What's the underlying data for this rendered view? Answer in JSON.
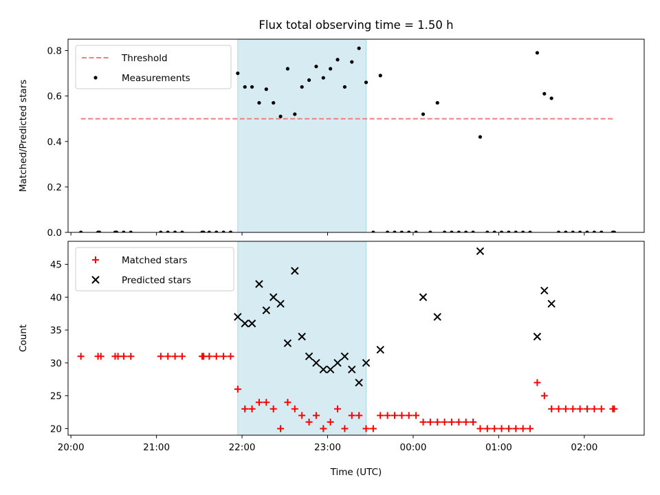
{
  "chart_data": {
    "type": "scatter",
    "title": "Flux total observing time = 1.50 h",
    "xlabel": "Time (UTC)",
    "x_unit": "time of day (UTC)",
    "xlim": [
      "19:58",
      "02:42"
    ],
    "x_ticks": [
      "20:00",
      "21:00",
      "22:00",
      "23:00",
      "00:00",
      "01:00",
      "02:00"
    ],
    "highlight_span": {
      "start": "21:57",
      "end": "23:27",
      "color": "#add8e6"
    },
    "panels": [
      {
        "ylabel": "Matched/Predicted stars",
        "ylim": [
          0,
          0.85
        ],
        "y_ticks": [
          0.0,
          0.2,
          0.4,
          0.6,
          0.8
        ],
        "y_tick_labels": [
          "0.0",
          "0.2",
          "0.4",
          "0.6",
          "0.8"
        ],
        "legend": {
          "position": "upper left",
          "entries": [
            "Threshold",
            "Measurements"
          ]
        },
        "lines": [
          {
            "name": "Threshold",
            "style": "dashed",
            "color": "#f07f7f",
            "y": 0.5,
            "x_range": [
              "20:07",
              "02:20"
            ]
          }
        ],
        "series": [
          {
            "name": "Measurements",
            "marker": "dot",
            "color": "#000000",
            "points": [
              [
                "20:07",
                0.0
              ],
              [
                "20:19",
                0.0
              ],
              [
                "20:20",
                0.0
              ],
              [
                "20:31",
                0.0
              ],
              [
                "20:32",
                0.0
              ],
              [
                "20:37",
                0.0
              ],
              [
                "20:42",
                0.0
              ],
              [
                "21:03",
                0.0
              ],
              [
                "21:08",
                0.0
              ],
              [
                "21:13",
                0.0
              ],
              [
                "21:18",
                0.0
              ],
              [
                "21:32",
                0.0
              ],
              [
                "21:33",
                0.0
              ],
              [
                "21:37",
                0.0
              ],
              [
                "21:42",
                0.0
              ],
              [
                "21:47",
                0.0
              ],
              [
                "21:52",
                0.0
              ],
              [
                "21:57",
                0.7
              ],
              [
                "22:02",
                0.64
              ],
              [
                "22:07",
                0.64
              ],
              [
                "22:12",
                0.57
              ],
              [
                "22:17",
                0.63
              ],
              [
                "22:22",
                0.57
              ],
              [
                "22:27",
                0.51
              ],
              [
                "22:32",
                0.72
              ],
              [
                "22:37",
                0.52
              ],
              [
                "22:42",
                0.64
              ],
              [
                "22:47",
                0.67
              ],
              [
                "22:52",
                0.73
              ],
              [
                "22:57",
                0.68
              ],
              [
                "23:02",
                0.72
              ],
              [
                "23:07",
                0.76
              ],
              [
                "23:12",
                0.64
              ],
              [
                "23:17",
                0.75
              ],
              [
                "23:22",
                0.81
              ],
              [
                "23:27",
                0.66
              ],
              [
                "23:32",
                0.0
              ],
              [
                "23:37",
                0.69
              ],
              [
                "23:42",
                0.0
              ],
              [
                "23:47",
                0.0
              ],
              [
                "23:52",
                0.0
              ],
              [
                "23:57",
                0.0
              ],
              [
                "00:02",
                0.0
              ],
              [
                "00:07",
                0.52
              ],
              [
                "00:12",
                0.0
              ],
              [
                "00:17",
                0.57
              ],
              [
                "00:22",
                0.0
              ],
              [
                "00:27",
                0.0
              ],
              [
                "00:32",
                0.0
              ],
              [
                "00:37",
                0.0
              ],
              [
                "00:42",
                0.0
              ],
              [
                "00:47",
                0.42
              ],
              [
                "00:52",
                0.0
              ],
              [
                "00:57",
                0.0
              ],
              [
                "01:02",
                0.0
              ],
              [
                "01:07",
                0.0
              ],
              [
                "01:12",
                0.0
              ],
              [
                "01:17",
                0.0
              ],
              [
                "01:22",
                0.0
              ],
              [
                "01:27",
                0.79
              ],
              [
                "01:32",
                0.61
              ],
              [
                "01:37",
                0.59
              ],
              [
                "01:42",
                0.0
              ],
              [
                "01:47",
                0.0
              ],
              [
                "01:52",
                0.0
              ],
              [
                "01:57",
                0.0
              ],
              [
                "02:02",
                0.0
              ],
              [
                "02:07",
                0.0
              ],
              [
                "02:12",
                0.0
              ],
              [
                "02:20",
                0.0
              ],
              [
                "02:21",
                0.0
              ]
            ]
          }
        ]
      },
      {
        "ylabel": "Count",
        "ylim": [
          19,
          48.5
        ],
        "y_ticks": [
          20,
          25,
          30,
          35,
          40,
          45
        ],
        "y_tick_labels": [
          "20",
          "25",
          "30",
          "35",
          "40",
          "45"
        ],
        "legend": {
          "position": "upper left",
          "entries": [
            "Matched stars",
            "Predicted stars"
          ]
        },
        "series": [
          {
            "name": "Matched stars",
            "marker": "plus",
            "color": "#ff0000",
            "points": [
              [
                "20:07",
                31
              ],
              [
                "20:19",
                31
              ],
              [
                "20:21",
                31
              ],
              [
                "20:31",
                31
              ],
              [
                "20:33",
                31
              ],
              [
                "20:37",
                31
              ],
              [
                "20:42",
                31
              ],
              [
                "21:03",
                31
              ],
              [
                "21:08",
                31
              ],
              [
                "21:13",
                31
              ],
              [
                "21:18",
                31
              ],
              [
                "21:32",
                31
              ],
              [
                "21:33",
                31
              ],
              [
                "21:37",
                31
              ],
              [
                "21:42",
                31
              ],
              [
                "21:47",
                31
              ],
              [
                "21:52",
                31
              ],
              [
                "21:57",
                26
              ],
              [
                "22:02",
                23
              ],
              [
                "22:07",
                23
              ],
              [
                "22:12",
                24
              ],
              [
                "22:17",
                24
              ],
              [
                "22:22",
                23
              ],
              [
                "22:27",
                20
              ],
              [
                "22:32",
                24
              ],
              [
                "22:37",
                23
              ],
              [
                "22:42",
                22
              ],
              [
                "22:47",
                21
              ],
              [
                "22:52",
                22
              ],
              [
                "22:57",
                20
              ],
              [
                "23:02",
                21
              ],
              [
                "23:07",
                23
              ],
              [
                "23:12",
                20
              ],
              [
                "23:17",
                22
              ],
              [
                "23:22",
                22
              ],
              [
                "23:27",
                20
              ],
              [
                "23:32",
                20
              ],
              [
                "23:37",
                22
              ],
              [
                "23:42",
                22
              ],
              [
                "23:47",
                22
              ],
              [
                "23:52",
                22
              ],
              [
                "23:57",
                22
              ],
              [
                "00:02",
                22
              ],
              [
                "00:07",
                21
              ],
              [
                "00:12",
                21
              ],
              [
                "00:17",
                21
              ],
              [
                "00:22",
                21
              ],
              [
                "00:27",
                21
              ],
              [
                "00:32",
                21
              ],
              [
                "00:37",
                21
              ],
              [
                "00:42",
                21
              ],
              [
                "00:47",
                20
              ],
              [
                "00:52",
                20
              ],
              [
                "00:57",
                20
              ],
              [
                "01:02",
                20
              ],
              [
                "01:07",
                20
              ],
              [
                "01:12",
                20
              ],
              [
                "01:17",
                20
              ],
              [
                "01:22",
                20
              ],
              [
                "01:27",
                27
              ],
              [
                "01:32",
                25
              ],
              [
                "01:37",
                23
              ],
              [
                "01:42",
                23
              ],
              [
                "01:47",
                23
              ],
              [
                "01:52",
                23
              ],
              [
                "01:57",
                23
              ],
              [
                "02:02",
                23
              ],
              [
                "02:07",
                23
              ],
              [
                "02:12",
                23
              ],
              [
                "02:20",
                23
              ],
              [
                "02:21",
                23
              ]
            ]
          },
          {
            "name": "Predicted stars",
            "marker": "x",
            "color": "#000000",
            "points": [
              [
                "21:57",
                37
              ],
              [
                "22:02",
                36
              ],
              [
                "22:07",
                36
              ],
              [
                "22:12",
                42
              ],
              [
                "22:17",
                38
              ],
              [
                "22:22",
                40
              ],
              [
                "22:27",
                39
              ],
              [
                "22:32",
                33
              ],
              [
                "22:37",
                44
              ],
              [
                "22:42",
                34
              ],
              [
                "22:47",
                31
              ],
              [
                "22:52",
                30
              ],
              [
                "22:57",
                29
              ],
              [
                "23:02",
                29
              ],
              [
                "23:07",
                30
              ],
              [
                "23:12",
                31
              ],
              [
                "23:17",
                29
              ],
              [
                "23:22",
                27
              ],
              [
                "23:27",
                30
              ],
              [
                "23:37",
                32
              ],
              [
                "00:07",
                40
              ],
              [
                "00:17",
                37
              ],
              [
                "00:47",
                47
              ],
              [
                "01:27",
                34
              ],
              [
                "01:32",
                41
              ],
              [
                "01:37",
                39
              ]
            ]
          }
        ]
      }
    ]
  }
}
